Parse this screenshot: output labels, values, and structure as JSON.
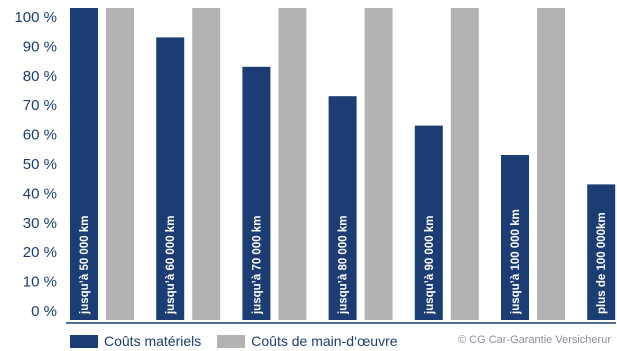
{
  "chart_data": {
    "type": "bar",
    "categories": [
      "jusqu’à 50 000 km",
      "jusqu’à 60 000 km",
      "jusqu’à 70 000 km",
      "jusqu’à 80 000 km",
      "jusqu’à 90 000 km",
      "jusqu’à 100 000 km",
      "plus de 100 000km"
    ],
    "series": [
      {
        "name": "Coûts matériels",
        "color": "#1b3d73",
        "values": [
          100,
          90,
          80,
          70,
          60,
          50,
          40
        ]
      },
      {
        "name": "Coûts de main-d‘œuvre",
        "color": "#b3b3b3",
        "values": [
          100,
          100,
          100,
          100,
          100,
          100,
          null
        ]
      }
    ],
    "y_ticks": [
      "0 %",
      "10 %",
      "20 %",
      "30 %",
      "40 %",
      "50 %",
      "60 %",
      "70 %",
      "80 %",
      "90 %",
      "100 %"
    ],
    "ylim": [
      0,
      100
    ],
    "legend_position": "bottom-left",
    "grid": false,
    "colors": {
      "axis": "#1b3d73",
      "text": "#1b3d73",
      "credit": "#8a8f99"
    }
  },
  "legend": {
    "material": "Coûts matériels",
    "labour": "Coûts de main-d‘œuvre"
  },
  "credit": "© CG Car-Garantie Versicherur"
}
